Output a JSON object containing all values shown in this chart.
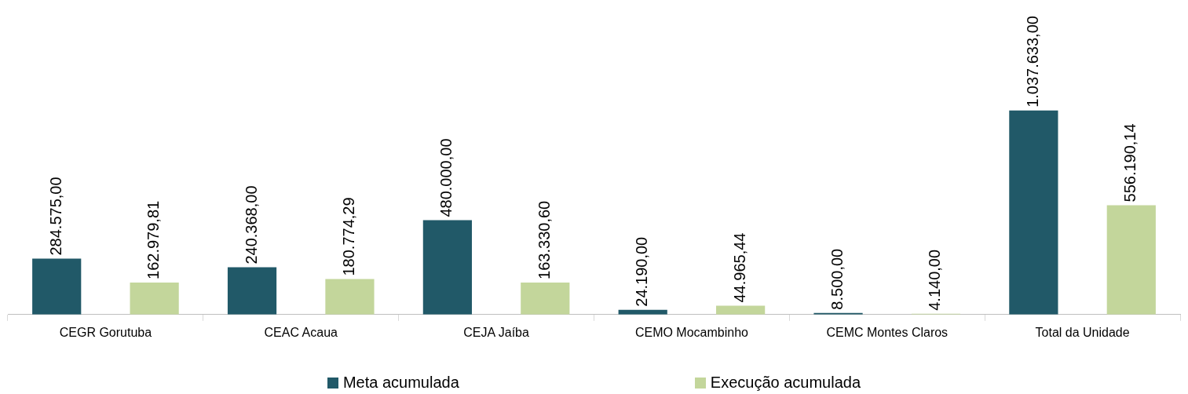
{
  "chart_data": {
    "type": "bar",
    "categories": [
      "CEGR Gorutuba",
      "CEAC Acaua",
      "CEJA Jaíba",
      "CEMO Mocambinho",
      "CEMC Montes Claros",
      "Total da Unidade"
    ],
    "series": [
      {
        "name": "Meta acumulada",
        "color": "#215968",
        "values": [
          284575,
          240368,
          480000,
          24190,
          8500,
          1037633
        ],
        "value_labels": [
          "284.575,00",
          "240.368,00",
          "480.000,00",
          "24.190,00",
          "8.500,00",
          "1.037.633,00"
        ]
      },
      {
        "name": "Execução acumulada",
        "color": "#c3d69b",
        "values": [
          162979.81,
          180774.29,
          163330.6,
          44965.44,
          4140,
          556190.14
        ],
        "value_labels": [
          "162.979,81",
          "180.774,29",
          "163.330,60",
          "44.965,44",
          "4.140,00",
          "556.190,14"
        ]
      }
    ],
    "legend": "bottom",
    "grid": false
  }
}
